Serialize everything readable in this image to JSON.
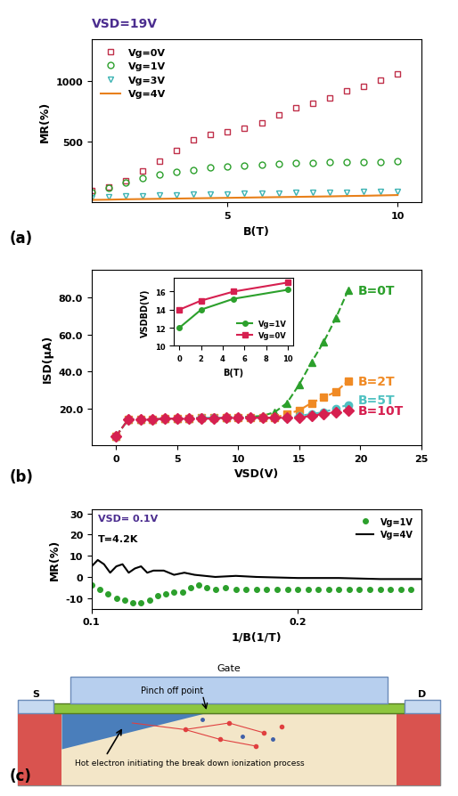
{
  "chart_data": [
    {
      "type": "line",
      "panel": "(a)",
      "annotations": [
        "VSD=19V"
      ],
      "x_label": "B(T)",
      "y_label": "MR(%)",
      "xlim": [
        1,
        10.7
      ],
      "xticks": [
        5,
        10
      ],
      "ylim": [
        0,
        1350
      ],
      "yticks": [
        500,
        1000
      ],
      "grid": false,
      "legend": "upper left",
      "x": [
        1,
        1.5,
        2,
        2.5,
        3,
        3.5,
        4,
        4.5,
        5,
        5.5,
        6,
        6.5,
        7,
        7.5,
        8,
        8.5,
        9,
        9.5,
        10
      ],
      "series": [
        {
          "name": "Vg=0V",
          "color": "#c0304a",
          "marker": "square_open",
          "line_style": "none",
          "values": [
            100,
            130,
            180,
            260,
            340,
            430,
            520,
            560,
            580,
            610,
            660,
            720,
            780,
            820,
            860,
            920,
            960,
            1010,
            1060
          ]
        },
        {
          "name": "Vg=1V",
          "color": "#2ca02c",
          "marker": "circle_open",
          "line_style": "none",
          "values": [
            80,
            120,
            160,
            200,
            230,
            250,
            270,
            285,
            295,
            305,
            312,
            318,
            322,
            326,
            330,
            332,
            334,
            336,
            338
          ]
        },
        {
          "name": "Vg=3V",
          "color": "#3bb3b3",
          "marker": "triangle_down_open",
          "line_style": "none",
          "values": [
            40,
            45,
            50,
            55,
            58,
            62,
            65,
            68,
            70,
            73,
            75,
            78,
            80,
            82,
            84,
            86,
            88,
            90,
            92
          ]
        },
        {
          "name": "Vg=4V",
          "color": "#e8801a",
          "marker": "none",
          "line_style": "solid",
          "values": [
            20,
            22,
            25,
            27,
            29,
            31,
            33,
            35,
            37,
            39,
            41,
            43,
            45,
            47,
            49,
            52,
            54,
            57,
            60
          ]
        }
      ]
    },
    {
      "type": "line",
      "panel": "(b)",
      "x_label": "VSD(V)",
      "y_label": "ISD(μA)",
      "xlim": [
        -2,
        25
      ],
      "xticks": [
        0,
        5,
        10,
        15,
        20,
        25
      ],
      "ylim": [
        0,
        95
      ],
      "yticks": [
        {
          "value": 20,
          "label": "20.0"
        },
        {
          "value": 40,
          "label": "40.0"
        },
        {
          "value": 60,
          "label": "60.0"
        },
        {
          "value": 80,
          "label": "80.0"
        }
      ],
      "grid": false,
      "x": [
        0,
        1,
        2,
        3,
        4,
        5,
        6,
        7,
        8,
        9,
        10,
        11,
        12,
        13,
        14,
        15,
        16,
        17,
        18,
        19
      ],
      "series": [
        {
          "name": "B=0T",
          "color": "#2ca02c",
          "marker": "triangle",
          "line_style": "dashed",
          "values": [
            5,
            14,
            14,
            14,
            14.5,
            14.5,
            14.5,
            15,
            15,
            15,
            15.5,
            15.5,
            16,
            18,
            23,
            33,
            45,
            56,
            69,
            84
          ]
        },
        {
          "name": "B=2T",
          "color": "#f08a24",
          "marker": "square",
          "line_style": "dashed",
          "values": [
            5,
            14,
            14,
            14,
            14.5,
            14.5,
            14.5,
            15,
            15,
            15,
            15,
            15,
            15,
            15,
            17,
            19,
            23,
            26,
            29,
            35
          ]
        },
        {
          "name": "B=5T",
          "color": "#4fc1c1",
          "marker": "circle",
          "line_style": "dashed",
          "values": [
            5,
            14,
            14,
            14,
            14.5,
            14.5,
            14.5,
            15,
            15,
            15,
            15,
            15,
            15,
            15,
            15,
            16,
            17,
            18,
            20,
            22
          ]
        },
        {
          "name": "B=10T",
          "color": "#d62050",
          "marker": "diamond",
          "line_style": "dashed",
          "values": [
            5,
            14,
            14,
            14,
            14.5,
            14.5,
            14.5,
            14.5,
            14.5,
            15,
            15,
            15,
            15,
            15,
            15,
            15,
            16,
            17,
            18,
            19
          ]
        }
      ],
      "inset": {
        "type": "line",
        "x_label": "B(T)",
        "y_label": "VSDBD(V)",
        "xlim": [
          -0.5,
          10.5
        ],
        "xticks": [
          0,
          2,
          4,
          6,
          8,
          10
        ],
        "ylim": [
          10,
          17.5
        ],
        "yticks": [
          10,
          12,
          14,
          16
        ],
        "grid": false,
        "legend": "lower right",
        "x": [
          0,
          2,
          5,
          10
        ],
        "series": [
          {
            "name": "Vg=1V",
            "color": "#2ca02c",
            "marker": "circle",
            "line_style": "solid",
            "values": [
              12,
              14,
              15.2,
              16.2
            ]
          },
          {
            "name": "Vg=0V",
            "color": "#d62050",
            "marker": "square",
            "line_style": "solid",
            "values": [
              14,
              15,
              16,
              17
            ]
          }
        ]
      }
    },
    {
      "type": "line",
      "panel": "(c)",
      "annotations": [
        "VSD= 0.1V",
        "T=4.2K"
      ],
      "x_label": "1/B(1/T)",
      "y_label": "MR(%)",
      "xlim": [
        0.1,
        0.26
      ],
      "xticks": [
        0.1,
        0.2
      ],
      "ylim": [
        -15,
        32
      ],
      "yticks": [
        -10,
        0,
        10,
        20,
        30
      ],
      "grid": false,
      "legend": "upper right",
      "series": [
        {
          "name": "Vg=1V",
          "color": "#2ca02c",
          "marker": "circle",
          "line_style": "none",
          "x": [
            0.1,
            0.104,
            0.108,
            0.112,
            0.116,
            0.12,
            0.124,
            0.128,
            0.132,
            0.136,
            0.14,
            0.144,
            0.148,
            0.152,
            0.156,
            0.16,
            0.165,
            0.17,
            0.175,
            0.18,
            0.185,
            0.19,
            0.195,
            0.2,
            0.205,
            0.21,
            0.215,
            0.22,
            0.225,
            0.23,
            0.235,
            0.24,
            0.245,
            0.25,
            0.255
          ],
          "values": [
            -4,
            -6,
            -8,
            -10,
            -11,
            -12,
            -12,
            -11,
            -9,
            -8,
            -7,
            -7,
            -5,
            -4,
            -5,
            -6,
            -5,
            -6,
            -6,
            -6,
            -6,
            -6,
            -6,
            -6,
            -6,
            -6,
            -6,
            -6,
            -6,
            -6,
            -6,
            -6,
            -6,
            -6,
            -6
          ]
        },
        {
          "name": "Vg=4V",
          "color": "#000000",
          "marker": "none",
          "line_style": "solid",
          "x": [
            0.1,
            0.103,
            0.106,
            0.109,
            0.112,
            0.115,
            0.118,
            0.121,
            0.124,
            0.127,
            0.13,
            0.135,
            0.14,
            0.145,
            0.15,
            0.16,
            0.17,
            0.18,
            0.2,
            0.22,
            0.24,
            0.26
          ],
          "values": [
            5,
            8,
            6,
            2,
            5,
            6,
            2,
            4,
            5,
            2,
            3,
            3,
            1,
            2,
            1,
            0,
            0.5,
            0,
            -0.5,
            -0.5,
            -1,
            -1
          ]
        }
      ]
    }
  ],
  "diagram": {
    "gate": "Gate",
    "source": "S",
    "drain": "D",
    "pinch_off": "Pinch off point",
    "hot_electron": "Hot electron initiating the break down ionization process"
  }
}
